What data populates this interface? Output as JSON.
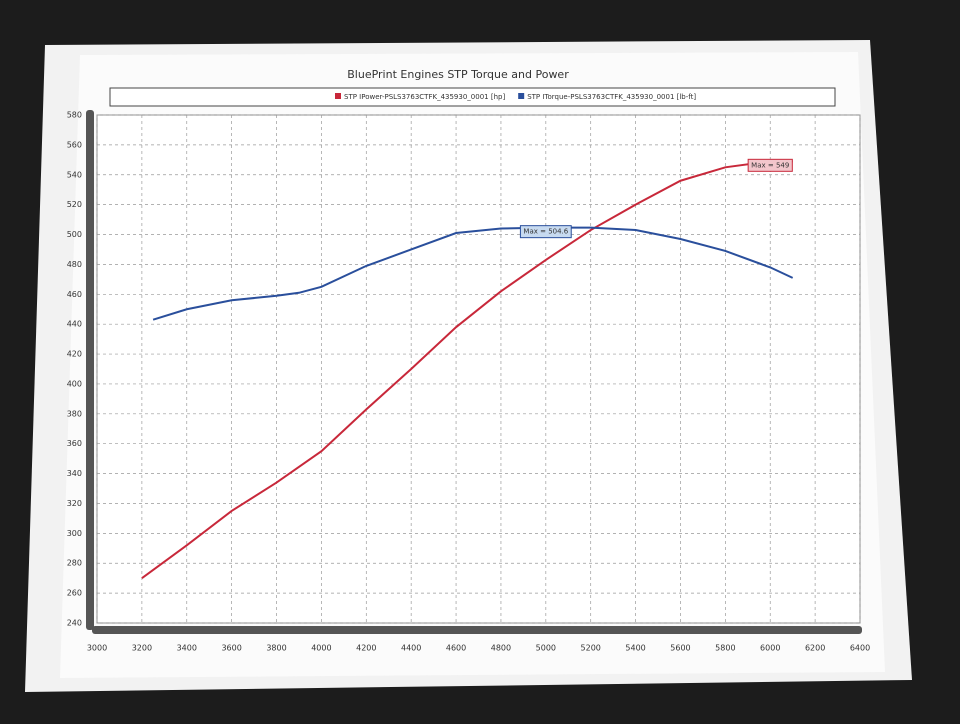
{
  "chart_data": {
    "type": "line",
    "title": "BluePrint Engines STP Torque and Power",
    "series": [
      {
        "name": "STP IPower-PSLS3763CTFK_435930_0001 [hp]",
        "color": "#c8283a",
        "x": [
          3200,
          3400,
          3600,
          3800,
          4000,
          4200,
          4400,
          4600,
          4800,
          5000,
          5200,
          5400,
          5600,
          5800,
          6000,
          6100
        ],
        "values": [
          270,
          292,
          315,
          334,
          355,
          383,
          410,
          438,
          462,
          483,
          503,
          520,
          536,
          545,
          549,
          549
        ]
      },
      {
        "name": "STP ITorque-PSLS3763CTFK_435930_0001 [lb-ft]",
        "color": "#2a4f9c",
        "x": [
          3250,
          3400,
          3600,
          3800,
          3900,
          4000,
          4200,
          4400,
          4600,
          4800,
          5000,
          5200,
          5400,
          5600,
          5800,
          6000,
          6100
        ],
        "values": [
          443,
          450,
          456,
          459,
          461,
          465,
          479,
          490,
          501,
          504,
          504.6,
          504.6,
          503,
          497,
          489,
          478,
          471
        ]
      }
    ],
    "annotations": [
      "Max = 549",
      "Max = 504.6"
    ],
    "xlim": [
      3000,
      6400
    ],
    "xticks": [
      3000,
      3200,
      3400,
      3600,
      3800,
      4000,
      4200,
      4400,
      4600,
      4800,
      5000,
      5200,
      5400,
      5600,
      5800,
      6000,
      6200,
      6400
    ],
    "ylim": [
      240,
      580
    ],
    "yticks": [
      240,
      260,
      280,
      300,
      320,
      340,
      360,
      380,
      400,
      420,
      440,
      460,
      480,
      500,
      520,
      540,
      560,
      580
    ],
    "grid": true
  }
}
